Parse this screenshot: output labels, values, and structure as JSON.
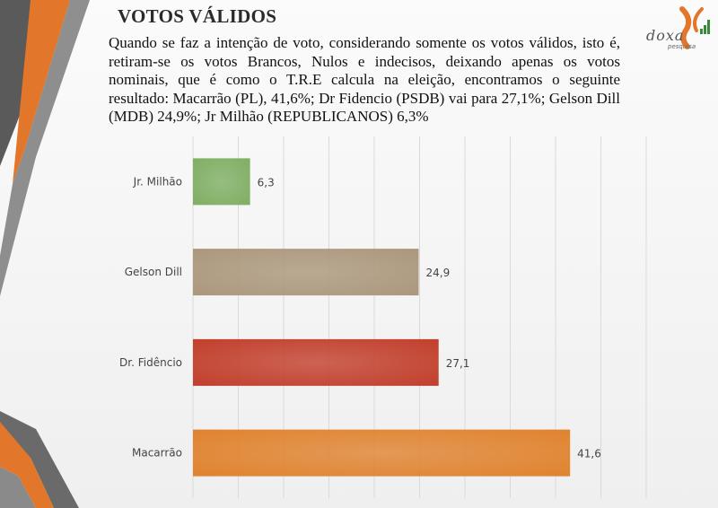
{
  "slide": {
    "title": "VOTOS VÁLIDOS",
    "description": "Quando se faz a intenção de voto, considerando somente os votos válidos, isto é, retiram-se os votos Brancos, Nulos e indecisos, deixando apenas os votos nominais, que é como o T.R.E calcula na eleição, encontramos o seguinte resultado: Macarrão (PL), 41,6%; Dr Fidencio (PSDB) vai para 27,1%; Gelson Dill (MDB) 24,9%; Jr Milhão (REPUBLICANOS) 6,3%"
  },
  "logo": {
    "name": "doxa",
    "tagline": "pesquisa",
    "icon": "doxa-logo-icon"
  },
  "colors": {
    "orange": "#e0832f",
    "green": "#7fae63",
    "taupe": "#ab977c",
    "red": "#c23f2c"
  },
  "chart_data": {
    "type": "bar",
    "orientation": "horizontal",
    "categories": [
      "Jr. Milhão",
      "Gelson Dill",
      "Dr. Fidêncio",
      "Macarrão"
    ],
    "values": [
      6.3,
      24.9,
      27.1,
      41.6
    ],
    "value_labels": [
      "6,3",
      "24,9",
      "27,1",
      "41,6"
    ],
    "bar_colors": [
      "#7fae63",
      "#ab977c",
      "#c23f2c",
      "#e0832f"
    ],
    "xlim": [
      0,
      50
    ],
    "grid": true,
    "legend": false,
    "title": "",
    "xlabel": "",
    "ylabel": ""
  }
}
